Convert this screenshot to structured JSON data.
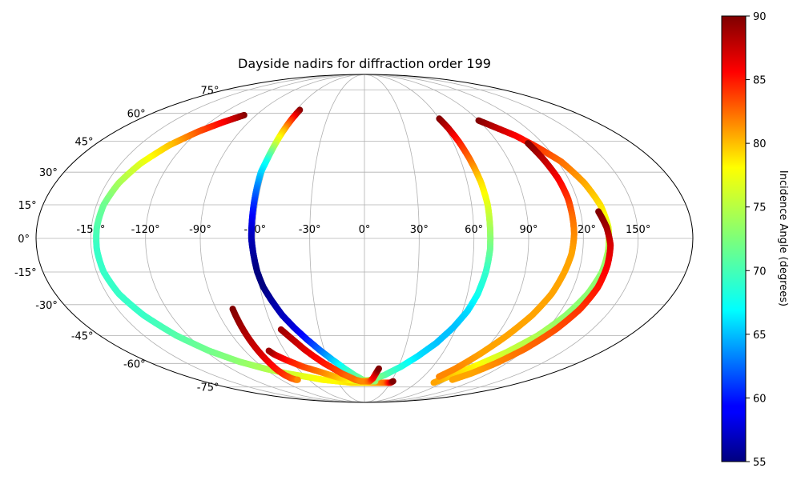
{
  "chart_data": {
    "type": "scatter",
    "projection": "mollweide",
    "title": "Dayside nadirs for diffraction order 199",
    "grid": true,
    "x_ticks": [
      "-150°",
      "-120°",
      "-90°",
      "-60°",
      "-30°",
      "0°",
      "30°",
      "60°",
      "90°",
      "120°",
      "150°"
    ],
    "y_ticks": [
      "75°",
      "60°",
      "45°",
      "30°",
      "15°",
      "0°",
      "-15°",
      "-30°",
      "-45°",
      "-60°",
      "-75°"
    ],
    "colorbar": {
      "label": "Incidence Angle (degrees)",
      "colormap": "jet",
      "range": [
        55,
        90
      ],
      "ticks": [
        "55",
        "60",
        "65",
        "70",
        "75",
        "80",
        "85",
        "90"
      ]
    },
    "series": [
      {
        "points": [
          [
            -100,
            59,
            90
          ],
          [
            -110,
            55,
            86
          ],
          [
            -120,
            50,
            83
          ],
          [
            -130,
            43,
            79
          ],
          [
            -138,
            34,
            76
          ],
          [
            -143,
            25,
            74
          ],
          [
            -146,
            15,
            72
          ],
          [
            -147,
            5,
            71
          ],
          [
            -147,
            -5,
            70
          ],
          [
            -146,
            -15,
            70
          ],
          [
            -143,
            -25,
            70
          ],
          [
            -137,
            -35,
            70
          ],
          [
            -128,
            -45,
            71
          ],
          [
            -117,
            -53,
            72
          ],
          [
            -104,
            -59,
            73
          ],
          [
            -90,
            -63,
            74
          ],
          [
            -75,
            -66,
            75
          ],
          [
            -60,
            -68,
            76
          ],
          [
            -45,
            -70,
            77
          ],
          [
            -30,
            -71,
            77
          ],
          [
            -15,
            -72,
            78
          ],
          [
            0,
            -72,
            78
          ],
          [
            15,
            -72,
            80
          ],
          [
            25,
            -72,
            82
          ],
          [
            30,
            -72,
            86
          ],
          [
            32,
            -71,
            90
          ]
        ]
      },
      {
        "points": [
          [
            -57,
            62,
            90
          ],
          [
            -58,
            57,
            85
          ],
          [
            -59,
            50,
            79
          ],
          [
            -60,
            42,
            74
          ],
          [
            -61,
            35,
            69
          ],
          [
            -62,
            30,
            67
          ],
          [
            -62,
            23,
            64
          ],
          [
            -62,
            15,
            61
          ],
          [
            -62,
            8,
            59
          ],
          [
            -62,
            0,
            57
          ],
          [
            -61,
            -8,
            56
          ],
          [
            -60,
            -15,
            55
          ],
          [
            -58,
            -22,
            55
          ],
          [
            -55,
            -28,
            56
          ],
          [
            -51,
            -35,
            57
          ],
          [
            -46,
            -41,
            58
          ],
          [
            -40,
            -47,
            60
          ],
          [
            -33,
            -53,
            63
          ],
          [
            -26,
            -58,
            66
          ],
          [
            -18,
            -63,
            69
          ],
          [
            -10,
            -67,
            71
          ],
          [
            -2,
            -70,
            72
          ],
          [
            5,
            -71,
            73
          ],
          [
            12,
            -71,
            73
          ]
        ]
      },
      {
        "points": [
          [
            60,
            57,
            90
          ],
          [
            62,
            52,
            88
          ],
          [
            64,
            45,
            85
          ],
          [
            66,
            36,
            82
          ],
          [
            68,
            25,
            78
          ],
          [
            69,
            15,
            76
          ],
          [
            69,
            5,
            74
          ],
          [
            69,
            -5,
            72
          ],
          [
            68,
            -15,
            70
          ],
          [
            66,
            -25,
            69
          ],
          [
            63,
            -33,
            67
          ],
          [
            58,
            -41,
            66
          ],
          [
            51,
            -49,
            66
          ],
          [
            42,
            -56,
            67
          ],
          [
            32,
            -62,
            69
          ],
          [
            20,
            -67,
            71
          ],
          [
            8,
            -70,
            73
          ],
          [
            -5,
            -71,
            75
          ],
          [
            -18,
            -70,
            77
          ],
          [
            -30,
            -68,
            79
          ],
          [
            -42,
            -65,
            81
          ],
          [
            -54,
            -62,
            83
          ],
          [
            -64,
            -58,
            85
          ],
          [
            -70,
            -55,
            87
          ],
          [
            -72,
            -53,
            89
          ]
        ]
      },
      {
        "points": [
          [
            -80,
            -32,
            90
          ],
          [
            -80,
            -40,
            89
          ],
          [
            -80,
            -48,
            88
          ],
          [
            -80,
            -55,
            87
          ],
          [
            -80,
            -60,
            86
          ],
          [
            -80,
            -64,
            85
          ],
          [
            -79,
            -67,
            84
          ],
          [
            -77,
            -69,
            83
          ],
          [
            -74,
            -70,
            82
          ],
          [
            -72,
            -70,
            81
          ]
        ]
      },
      {
        "points": [
          [
            -55,
            -42,
            89
          ],
          [
            -50,
            -47,
            88
          ],
          [
            -45,
            -52,
            87
          ],
          [
            -40,
            -56,
            86
          ],
          [
            -34,
            -60,
            85
          ],
          [
            -28,
            -63,
            84
          ],
          [
            -22,
            -66,
            83
          ],
          [
            -16,
            -68,
            82
          ],
          [
            -10,
            -70,
            82
          ],
          [
            -4,
            -71,
            81
          ],
          [
            2,
            -71,
            81
          ],
          [
            6,
            -71,
            82
          ],
          [
            9,
            -69,
            85
          ],
          [
            11,
            -66,
            87
          ],
          [
            13,
            -63,
            90
          ]
        ]
      },
      {
        "points": [
          [
            90,
            56,
            90
          ],
          [
            98,
            52,
            88
          ],
          [
            106,
            48,
            86
          ],
          [
            114,
            42,
            84
          ],
          [
            122,
            35,
            82
          ],
          [
            128,
            25,
            80
          ],
          [
            132,
            15,
            78
          ],
          [
            134,
            5,
            76
          ],
          [
            134,
            -5,
            74
          ],
          [
            133,
            -15,
            73
          ],
          [
            130,
            -25,
            73
          ],
          [
            125,
            -35,
            73
          ],
          [
            118,
            -45,
            74
          ],
          [
            108,
            -54,
            75
          ],
          [
            96,
            -62,
            77
          ],
          [
            84,
            -69,
            79
          ],
          [
            80,
            -72,
            80
          ]
        ]
      },
      {
        "points": [
          [
            110,
            44,
            90
          ],
          [
            112,
            36,
            88
          ],
          [
            114,
            27,
            86
          ],
          [
            115,
            18,
            84
          ],
          [
            115,
            10,
            82
          ],
          [
            115,
            2,
            81
          ],
          [
            114,
            -7,
            80
          ],
          [
            112,
            -15,
            80
          ],
          [
            109,
            -25,
            80
          ],
          [
            104,
            -35,
            80
          ],
          [
            97,
            -45,
            80
          ],
          [
            89,
            -55,
            80
          ],
          [
            82,
            -63,
            81
          ],
          [
            76,
            -68,
            81
          ]
        ]
      },
      {
        "points": [
          [
            130,
            12,
            90
          ],
          [
            133,
            5,
            89
          ],
          [
            135,
            -3,
            87
          ],
          [
            135,
            -12,
            86
          ],
          [
            134,
            -22,
            85
          ],
          [
            131,
            -32,
            84
          ],
          [
            126,
            -42,
            83
          ],
          [
            119,
            -52,
            82
          ],
          [
            111,
            -60,
            81
          ],
          [
            103,
            -66,
            80
          ],
          [
            95,
            -70,
            80
          ]
        ]
      }
    ]
  }
}
